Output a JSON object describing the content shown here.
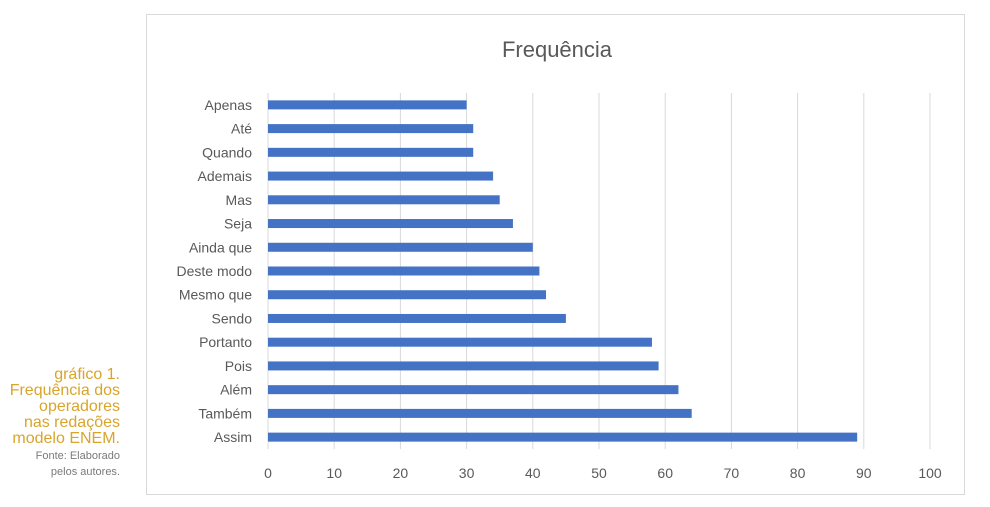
{
  "caption": {
    "title_lines": [
      "gráfico 1.",
      "Frequência dos",
      "operadores",
      "nas redações",
      "modelo ENEM."
    ],
    "source_lines": [
      "Fonte: Elaborado",
      "pelos autores."
    ]
  },
  "chart_data": {
    "type": "bar",
    "orientation": "horizontal",
    "title": "Frequência",
    "xlabel": "",
    "ylabel": "",
    "categories": [
      "Apenas",
      "Até",
      "Quando",
      "Ademais",
      "Mas",
      "Seja",
      "Ainda que",
      "Deste modo",
      "Mesmo que",
      "Sendo",
      "Portanto",
      "Pois",
      "Além",
      "Também",
      "Assim"
    ],
    "values": [
      30,
      31,
      31,
      34,
      35,
      37,
      40,
      41,
      42,
      45,
      58,
      59,
      62,
      64,
      89
    ],
    "xlim": [
      0,
      100
    ],
    "xticks": [
      0,
      10,
      20,
      30,
      40,
      50,
      60,
      70,
      80,
      90,
      100
    ],
    "grid": true,
    "legend": "none",
    "bar_color": "#4472c4",
    "grid_color": "#d9d9d9"
  }
}
